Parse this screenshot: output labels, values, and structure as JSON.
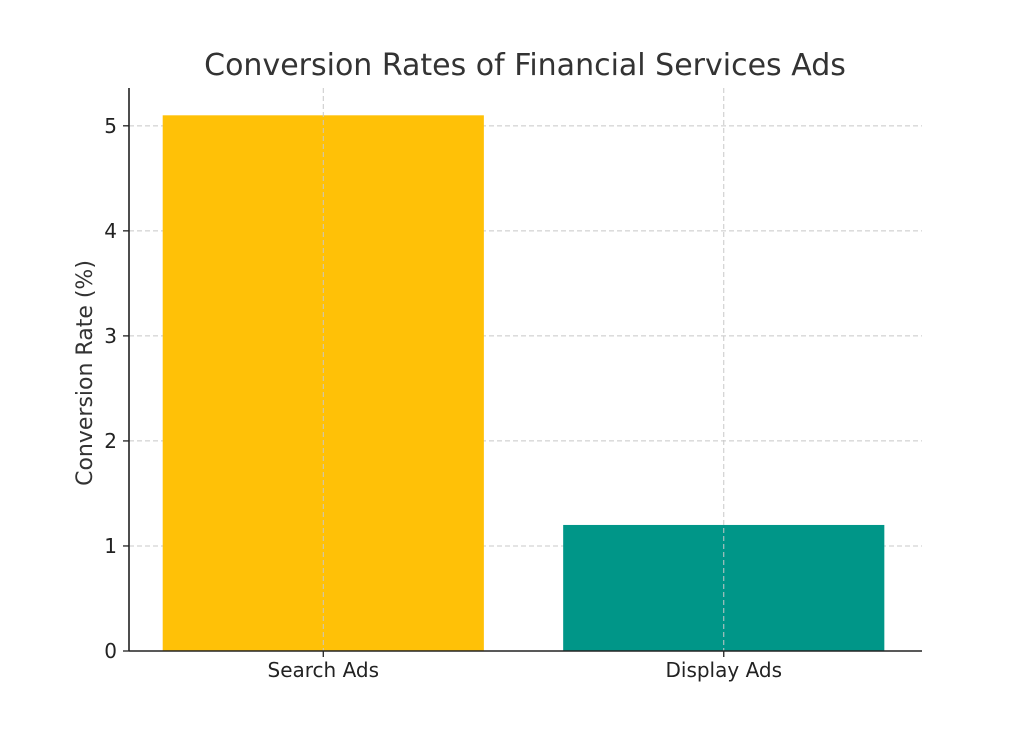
{
  "chart_data": {
    "type": "bar",
    "title": "Conversion Rates of Financial Services Ads",
    "xlabel": "",
    "ylabel": "Conversion Rate (%)",
    "categories": [
      "Search Ads",
      "Display Ads"
    ],
    "values": [
      5.1,
      1.2
    ],
    "colors": [
      "#FFC107",
      "#009688"
    ],
    "ylim": [
      0,
      5.36
    ],
    "yticks": [
      0,
      1,
      2,
      3,
      4,
      5
    ],
    "grid": true,
    "legend": "none"
  }
}
